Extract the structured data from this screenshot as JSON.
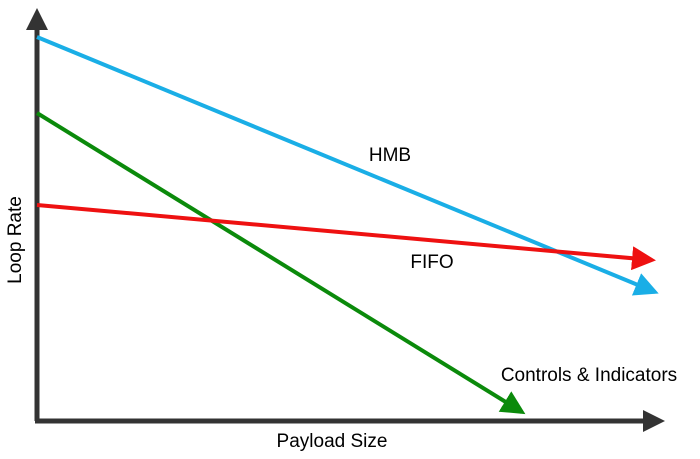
{
  "axes": {
    "x_label": "Payload Size",
    "y_label": "Loop Rate"
  },
  "lines": [
    {
      "label": "HMB"
    },
    {
      "label": "FIFO"
    },
    {
      "label": "Controls & Indicators"
    }
  ]
}
